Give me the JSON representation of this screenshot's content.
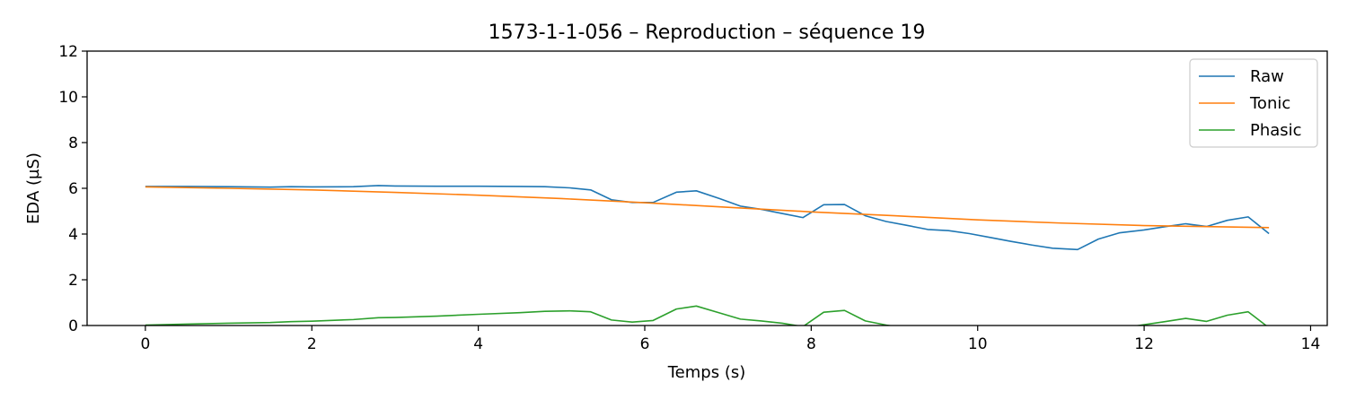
{
  "chart_data": {
    "type": "line",
    "title": "1573-1-1-056 – Reproduction – séquence 19",
    "xlabel": "Temps (s)",
    "ylabel": "EDA (µS)",
    "xlim": [
      -0.7,
      14.2
    ],
    "ylim": [
      0,
      12
    ],
    "xticks": [
      0,
      2,
      4,
      6,
      8,
      10,
      12,
      14
    ],
    "xtick_labels": [
      "0",
      "2",
      "4",
      "6",
      "8",
      "10",
      "12",
      "14"
    ],
    "yticks": [
      0,
      2,
      4,
      6,
      8,
      10,
      12
    ],
    "ytick_labels": [
      "0",
      "2",
      "4",
      "6",
      "8",
      "10",
      "12"
    ],
    "grid": false,
    "legend_position": "top-right",
    "series": [
      {
        "name": "Raw",
        "color": "#1f77b4",
        "points": [
          [
            0.0,
            6.08
          ],
          [
            0.5,
            6.08
          ],
          [
            1.0,
            6.07
          ],
          [
            1.5,
            6.05
          ],
          [
            1.75,
            6.07
          ],
          [
            2.0,
            6.06
          ],
          [
            2.5,
            6.07
          ],
          [
            2.8,
            6.12
          ],
          [
            3.0,
            6.1
          ],
          [
            3.5,
            6.09
          ],
          [
            4.0,
            6.09
          ],
          [
            4.5,
            6.08
          ],
          [
            4.8,
            6.07
          ],
          [
            5.1,
            6.02
          ],
          [
            5.35,
            5.93
          ],
          [
            5.6,
            5.5
          ],
          [
            5.85,
            5.38
          ],
          [
            6.1,
            5.38
          ],
          [
            6.38,
            5.83
          ],
          [
            6.62,
            5.89
          ],
          [
            6.9,
            5.55
          ],
          [
            7.15,
            5.22
          ],
          [
            7.4,
            5.08
          ],
          [
            7.65,
            4.9
          ],
          [
            7.9,
            4.72
          ],
          [
            8.15,
            5.28
          ],
          [
            8.4,
            5.29
          ],
          [
            8.65,
            4.8
          ],
          [
            8.9,
            4.55
          ],
          [
            9.15,
            4.38
          ],
          [
            9.4,
            4.2
          ],
          [
            9.65,
            4.15
          ],
          [
            9.9,
            4.02
          ],
          [
            10.15,
            3.85
          ],
          [
            10.4,
            3.68
          ],
          [
            10.65,
            3.52
          ],
          [
            10.9,
            3.38
          ],
          [
            11.2,
            3.32
          ],
          [
            11.45,
            3.78
          ],
          [
            11.7,
            4.05
          ],
          [
            12.0,
            4.18
          ],
          [
            12.25,
            4.32
          ],
          [
            12.5,
            4.45
          ],
          [
            12.75,
            4.33
          ],
          [
            13.0,
            4.6
          ],
          [
            13.25,
            4.75
          ],
          [
            13.5,
            4.02
          ]
        ]
      },
      {
        "name": "Tonic",
        "color": "#ff7f0e",
        "points": [
          [
            0.0,
            6.06
          ],
          [
            1.0,
            6.0
          ],
          [
            2.0,
            5.93
          ],
          [
            3.0,
            5.82
          ],
          [
            4.0,
            5.7
          ],
          [
            5.0,
            5.55
          ],
          [
            6.0,
            5.37
          ],
          [
            7.0,
            5.17
          ],
          [
            8.0,
            4.97
          ],
          [
            9.0,
            4.8
          ],
          [
            10.0,
            4.62
          ],
          [
            11.0,
            4.48
          ],
          [
            12.0,
            4.37
          ],
          [
            13.0,
            4.31
          ],
          [
            13.5,
            4.28
          ]
        ]
      },
      {
        "name": "Phasic",
        "color": "#2ca02c",
        "points": [
          [
            0.0,
            0.02
          ],
          [
            0.5,
            0.06
          ],
          [
            1.0,
            0.1
          ],
          [
            1.5,
            0.13
          ],
          [
            1.75,
            0.17
          ],
          [
            2.0,
            0.19
          ],
          [
            2.5,
            0.26
          ],
          [
            2.8,
            0.34
          ],
          [
            3.0,
            0.35
          ],
          [
            3.5,
            0.41
          ],
          [
            4.0,
            0.49
          ],
          [
            4.5,
            0.56
          ],
          [
            4.8,
            0.62
          ],
          [
            5.1,
            0.64
          ],
          [
            5.35,
            0.6
          ],
          [
            5.6,
            0.24
          ],
          [
            5.85,
            0.15
          ],
          [
            6.1,
            0.22
          ],
          [
            6.38,
            0.72
          ],
          [
            6.62,
            0.85
          ],
          [
            6.9,
            0.55
          ],
          [
            7.15,
            0.28
          ],
          [
            7.4,
            0.2
          ],
          [
            7.65,
            0.1
          ],
          [
            7.9,
            -0.05
          ],
          [
            8.15,
            0.58
          ],
          [
            8.4,
            0.66
          ],
          [
            8.65,
            0.2
          ],
          [
            8.9,
            0.02
          ],
          [
            9.1,
            -0.1
          ],
          [
            9.6,
            -0.1
          ],
          [
            10.5,
            -0.1
          ],
          [
            11.5,
            -0.1
          ],
          [
            11.9,
            -0.02
          ],
          [
            12.25,
            0.17
          ],
          [
            12.5,
            0.31
          ],
          [
            12.75,
            0.18
          ],
          [
            13.0,
            0.45
          ],
          [
            13.25,
            0.6
          ],
          [
            13.5,
            -0.1
          ]
        ]
      }
    ]
  }
}
